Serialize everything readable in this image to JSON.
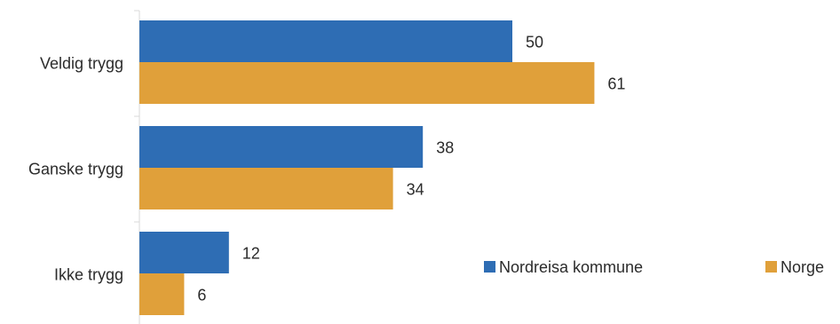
{
  "chart_data": {
    "type": "bar",
    "orientation": "horizontal",
    "categories": [
      "Veldig trygg",
      "Ganske trygg",
      "Ikke trygg"
    ],
    "series": [
      {
        "name": "Nordreisa kommune",
        "values": [
          50,
          38,
          12
        ],
        "color": "#2e6db4"
      },
      {
        "name": "Norge",
        "values": [
          61,
          34,
          6
        ],
        "color": "#e0a03a"
      }
    ],
    "xlim": [
      0,
      80
    ],
    "grid": false,
    "data_labels": true,
    "legend_position": "bottom-right"
  }
}
